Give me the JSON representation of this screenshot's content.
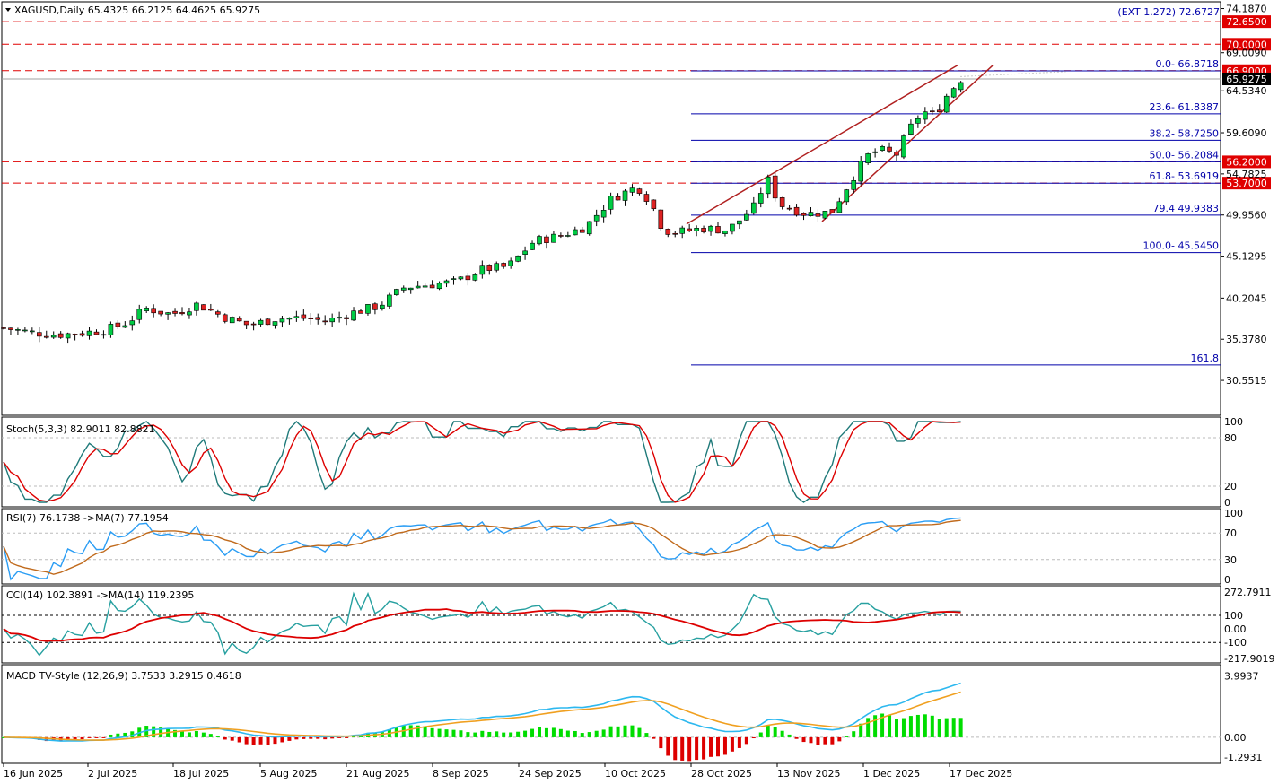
{
  "header": {
    "symbol_line": "XAGUSD,Daily  65.4325 66.2125 64.4625 65.9275",
    "ext_label": "(EXT 1.272)  72.6727"
  },
  "price_axis": {
    "ticks": [
      "74.1870",
      "69.0090",
      "64.5340",
      "59.6090",
      "54.7825",
      "49.9560",
      "45.1295",
      "40.2045",
      "35.3780",
      "30.5515"
    ],
    "current_price": "65.9275"
  },
  "levels": [
    {
      "value": 72.65,
      "label": "72.6500",
      "color": "#e00000"
    },
    {
      "value": 70.0,
      "label": "70.0000",
      "color": "#e00000"
    },
    {
      "value": 66.9,
      "label": "66.9000",
      "color": "#e00000"
    },
    {
      "value": 56.2,
      "label": "56.2000",
      "color": "#e00000"
    },
    {
      "value": 53.7,
      "label": "53.7000",
      "color": "#e00000"
    }
  ],
  "fibonacci": [
    {
      "label": "0.0- 66.8718",
      "value": 66.8718
    },
    {
      "label": "23.6- 61.8387",
      "value": 61.8387
    },
    {
      "label": "38.2- 58.7250",
      "value": 58.725
    },
    {
      "label": "50.0- 56.2084",
      "value": 56.2084
    },
    {
      "label": "61.8- 53.6919",
      "value": 53.6919
    },
    {
      "label": "79.4 49.9383",
      "value": 49.9383
    },
    {
      "label": "100.0- 45.5450",
      "value": 45.545
    },
    {
      "label": "161.8",
      "value": 32.36
    }
  ],
  "indicators": {
    "stoch": {
      "label": "Stoch(5,3,3) 82.9011 82.8821",
      "ticks": [
        "100",
        "80",
        "20",
        "0"
      ]
    },
    "rsi": {
      "label": "RSI(7) 76.1738  ->MA(7) 77.1954",
      "ticks": [
        "100",
        "70",
        "30",
        "0"
      ]
    },
    "cci": {
      "label": "CCI(14) 102.3891  ->MA(14) 119.2395",
      "ticks": [
        "272.7911",
        "100",
        "0.00",
        "-100",
        "-217.9019"
      ]
    },
    "macd": {
      "label": "MACD TV-Style (12,26,9) 3.7533 3.2915 0.4618",
      "ticks": [
        "3.9937",
        "0.00",
        "-1.2931"
      ]
    }
  },
  "x_axis": {
    "dates": [
      "16 Jun 2025",
      "2 Jul 2025",
      "18 Jul 2025",
      "5 Aug 2025",
      "21 Aug 2025",
      "8 Sep 2025",
      "24 Sep 2025",
      "10 Oct 2025",
      "28 Oct 2025",
      "13 Nov 2025",
      "1 Dec 2025",
      "17 Dec 2025"
    ]
  },
  "chart_data": {
    "type": "candlestick",
    "symbol": "XAGUSD",
    "timeframe": "Daily",
    "close_anchors": [
      [
        0,
        36.7
      ],
      [
        4,
        36.2
      ],
      [
        8,
        35.9
      ],
      [
        12,
        36.1
      ],
      [
        16,
        36.5
      ],
      [
        19,
        37.3
      ],
      [
        22,
        39.0
      ],
      [
        26,
        38.3
      ],
      [
        30,
        39.5
      ],
      [
        34,
        38.0
      ],
      [
        38,
        37.0
      ],
      [
        42,
        37.8
      ],
      [
        46,
        37.9
      ],
      [
        50,
        37.5
      ],
      [
        54,
        38.5
      ],
      [
        58,
        39.3
      ],
      [
        62,
        41.5
      ],
      [
        66,
        41.8
      ],
      [
        70,
        42.1
      ],
      [
        74,
        43.6
      ],
      [
        78,
        43.9
      ],
      [
        82,
        46.9
      ],
      [
        86,
        47.5
      ],
      [
        90,
        48.6
      ],
      [
        94,
        51.9
      ],
      [
        98,
        53.3
      ],
      [
        100,
        51.5
      ],
      [
        102,
        48.2
      ],
      [
        104,
        47.9
      ],
      [
        108,
        48.4
      ],
      [
        112,
        48.2
      ],
      [
        114,
        49.5
      ],
      [
        116,
        50.9
      ],
      [
        118,
        54.3
      ],
      [
        120,
        51.2
      ],
      [
        124,
        50.1
      ],
      [
        128,
        50.3
      ],
      [
        130,
        52.8
      ],
      [
        132,
        55.2
      ],
      [
        134,
        57.3
      ],
      [
        136,
        57.5
      ],
      [
        138,
        57.0
      ],
      [
        140,
        60.0
      ],
      [
        142,
        62.1
      ],
      [
        144,
        61.7
      ],
      [
        146,
        64.2
      ],
      [
        148,
        65.9
      ]
    ],
    "series_colors": {
      "up": "#00cc44",
      "down": "#dd2222"
    }
  },
  "colors": {
    "stoch_main": "#1f7a7a",
    "stoch_signal": "#dd0000",
    "rsi_main": "#2a9df4",
    "rsi_ma": "#c06a1c",
    "cci_main": "#27a0a0",
    "cci_ma": "#dd0000",
    "macd_line": "#2db8ef",
    "signal_line": "#f0a020",
    "hist_pos": "#00dd00",
    "hist_neg": "#dd0000",
    "fib": "#0000aa",
    "trend": "#b02020"
  }
}
